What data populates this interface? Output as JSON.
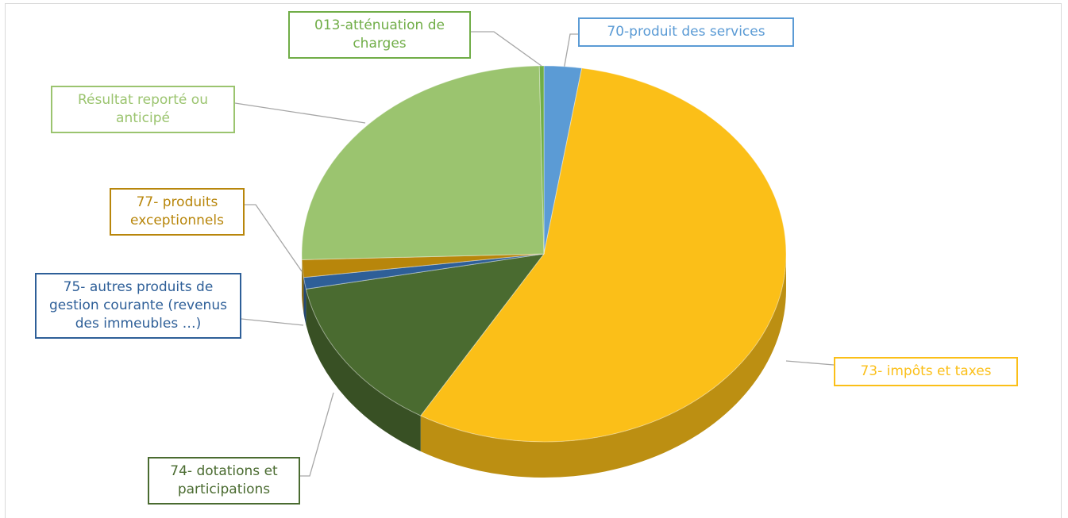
{
  "chart_data": {
    "type": "pie",
    "categories": [
      "70-produit des services",
      "73- impôts et taxes",
      "74- dotations et participations",
      "75- autres produits de gestion courante (revenus des immeubles …)",
      "77- produits exceptionnels",
      "Résultat reporté ou anticipé",
      "013-atténuation de charges"
    ],
    "values": [
      2.5,
      56,
      13.5,
      1,
      1.5,
      25.2,
      0.3
    ],
    "colors": [
      "#5b9bd5",
      "#fbbf18",
      "#4a6b30",
      "#2e5f98",
      "#b8860b",
      "#9bc46f",
      "#70ad47"
    ]
  }
}
